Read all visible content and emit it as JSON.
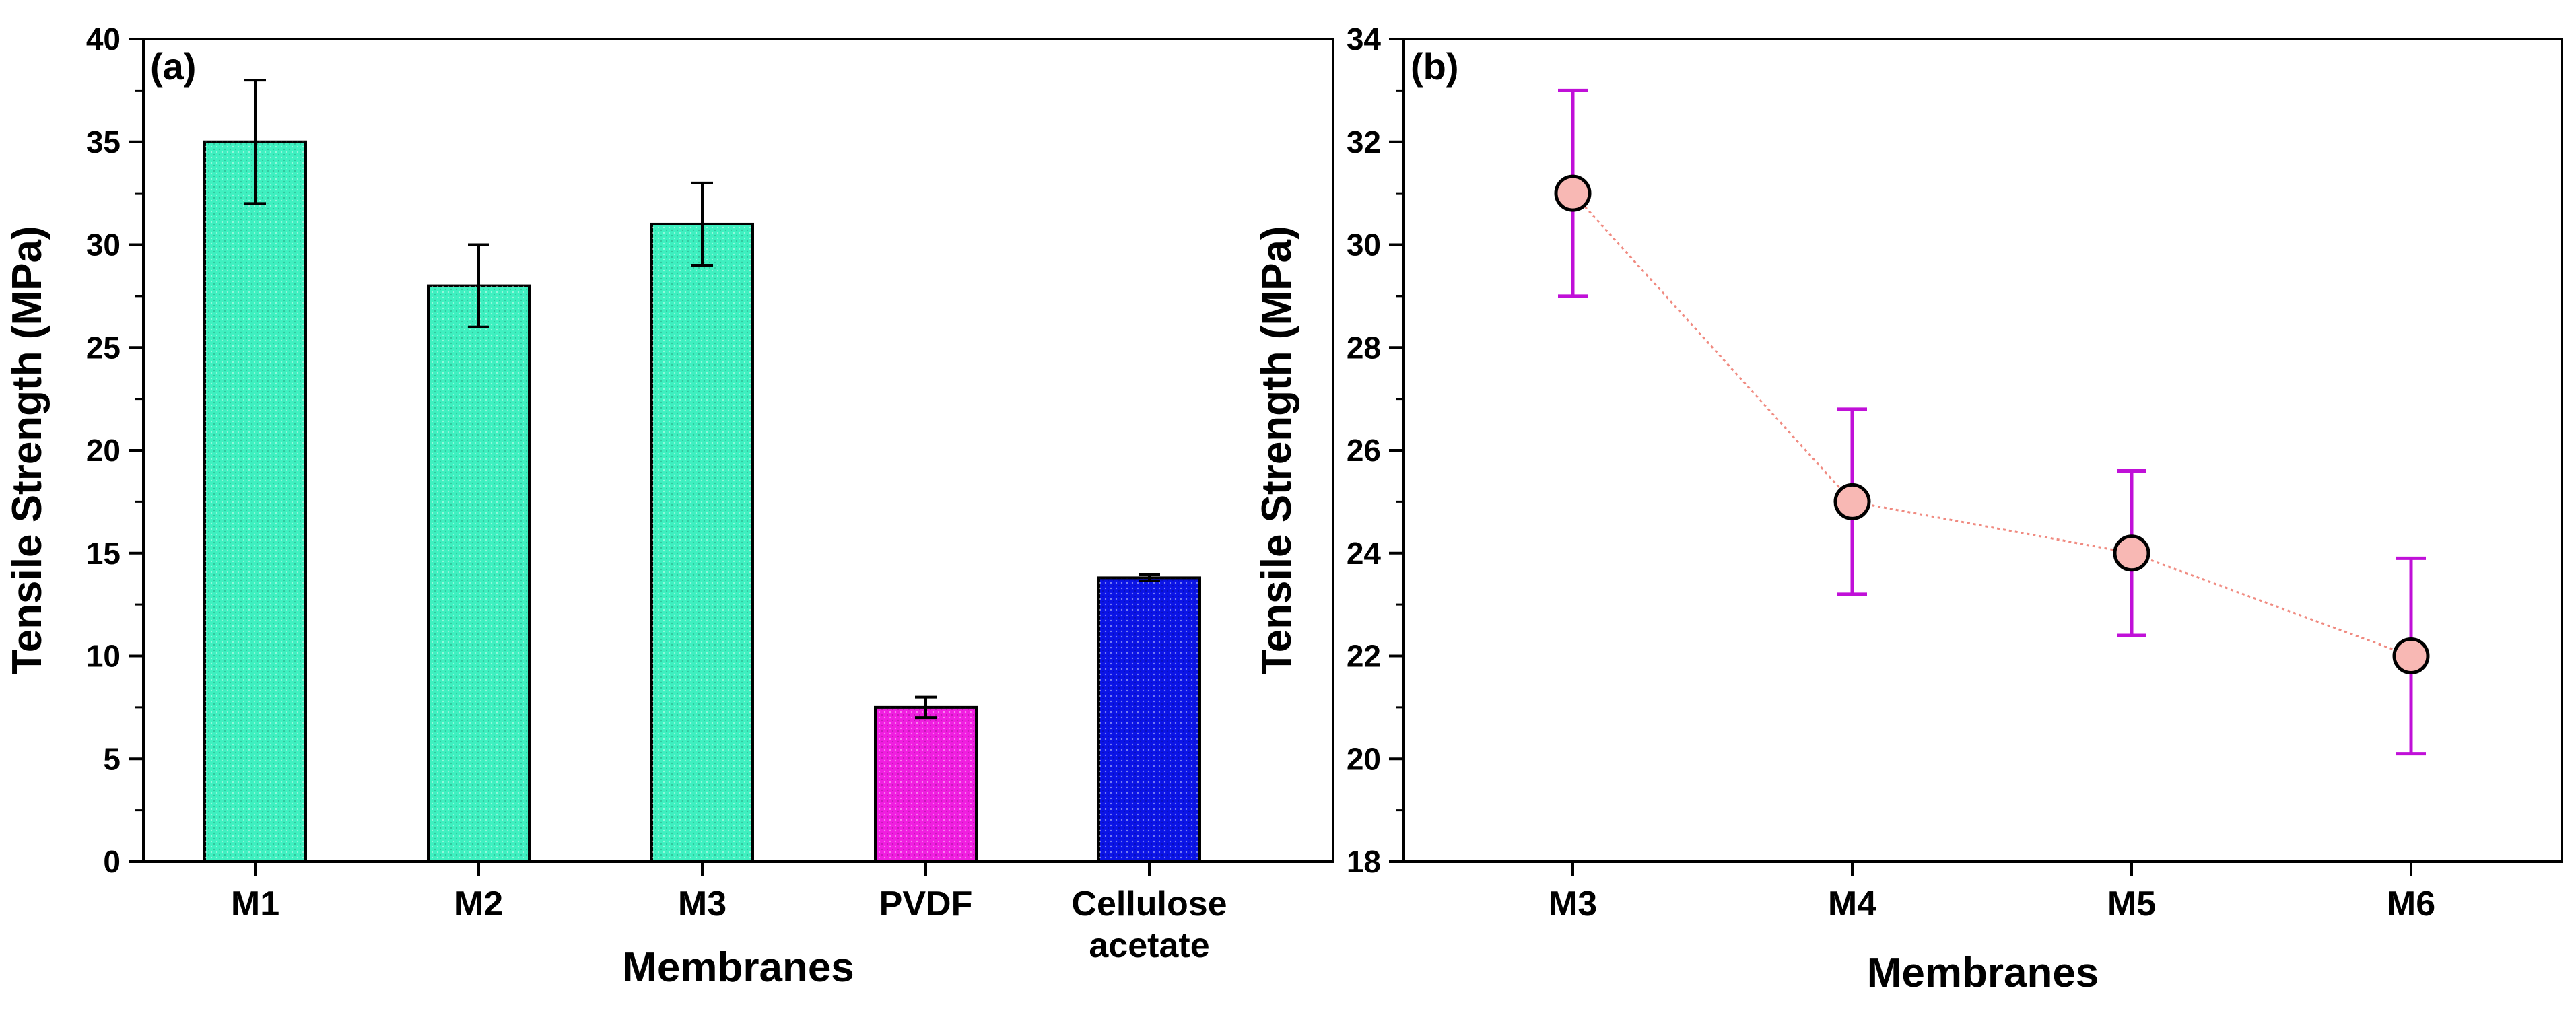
{
  "chart_data": [
    {
      "type": "bar",
      "panel_label": "(a)",
      "xlabel": "Membranes",
      "ylabel": "Tensile Strength (MPa)",
      "ylim": [
        0,
        40
      ],
      "yticks": [
        0,
        5,
        10,
        15,
        20,
        25,
        30,
        35,
        40
      ],
      "categories": [
        {
          "lines": [
            "M1"
          ]
        },
        {
          "lines": [
            "M2"
          ]
        },
        {
          "lines": [
            "M3"
          ]
        },
        {
          "lines": [
            "PVDF"
          ]
        },
        {
          "lines": [
            "Cellulose",
            "acetate"
          ]
        }
      ],
      "values": [
        35,
        28,
        31,
        7.5,
        13.8
      ],
      "errors": [
        3,
        2,
        2,
        0.5,
        0.15
      ],
      "colors": [
        "#3ef0c0",
        "#3ef0c0",
        "#3ef0c0",
        "#f01ee0",
        "#0b14e6"
      ],
      "errorbar_colors": [
        "#000000",
        "#000000",
        "#000000",
        "#000000",
        "#000000"
      ]
    },
    {
      "type": "line",
      "panel_label": "(b)",
      "xlabel": "Membranes",
      "ylabel": "Tensile Strength (MPa)",
      "ylim": [
        18,
        34
      ],
      "yticks": [
        18,
        20,
        22,
        24,
        26,
        28,
        30,
        32,
        34
      ],
      "categories": [
        {
          "lines": [
            "M3"
          ]
        },
        {
          "lines": [
            "M4"
          ]
        },
        {
          "lines": [
            "M5"
          ]
        },
        {
          "lines": [
            "M6"
          ]
        }
      ],
      "values": [
        31,
        25,
        24,
        22
      ],
      "errors": [
        2,
        1.8,
        1.6,
        1.9
      ],
      "marker_color": "#f8b8b4",
      "line_color": "#f08a80",
      "errorbar_color": "#c010d8"
    }
  ]
}
